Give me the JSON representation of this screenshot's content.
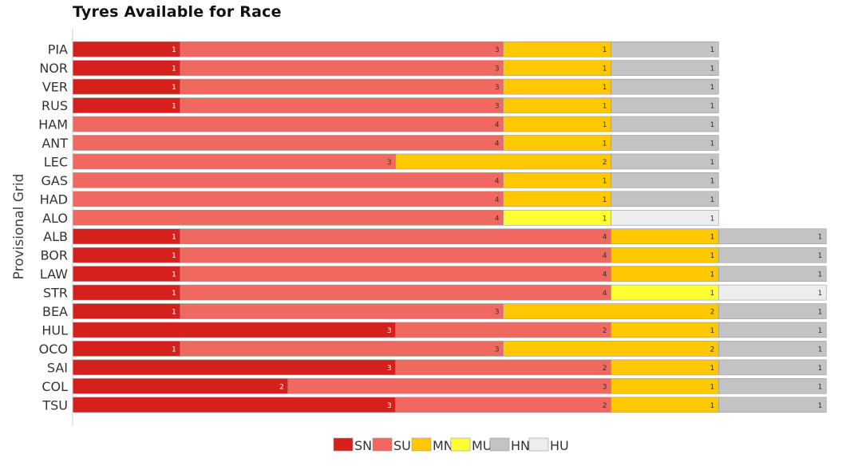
{
  "chart_data": {
    "type": "bar",
    "orientation": "horizontal",
    "stacked": true,
    "title": "Tyres Available for Race",
    "ylabel": "Provisional Grid",
    "xlabel": "",
    "categories": [
      "PIA",
      "NOR",
      "VER",
      "RUS",
      "HAM",
      "ANT",
      "LEC",
      "GAS",
      "HAD",
      "ALO",
      "ALB",
      "BOR",
      "LAW",
      "STR",
      "BEA",
      "HUL",
      "OCO",
      "SAI",
      "COL",
      "TSU"
    ],
    "series": [
      {
        "name": "SN",
        "color": "#d6201b",
        "values": [
          1,
          1,
          1,
          1,
          0,
          0,
          0,
          0,
          0,
          0,
          1,
          1,
          1,
          1,
          1,
          3,
          1,
          3,
          2,
          3
        ]
      },
      {
        "name": "SU",
        "color": "#f06860",
        "values": [
          3,
          3,
          3,
          3,
          4,
          4,
          3,
          4,
          4,
          4,
          4,
          4,
          4,
          4,
          3,
          2,
          3,
          2,
          3,
          2
        ]
      },
      {
        "name": "MN",
        "color": "#ffc800",
        "values": [
          1,
          1,
          1,
          1,
          1,
          1,
          2,
          1,
          1,
          0,
          1,
          1,
          1,
          0,
          2,
          1,
          2,
          1,
          1,
          1
        ]
      },
      {
        "name": "MU",
        "color": "#ffff33",
        "values": [
          0,
          0,
          0,
          0,
          0,
          0,
          0,
          0,
          0,
          1,
          0,
          0,
          0,
          1,
          0,
          0,
          0,
          0,
          0,
          0
        ]
      },
      {
        "name": "HN",
        "color": "#c3c3c3",
        "values": [
          1,
          1,
          1,
          1,
          1,
          1,
          1,
          1,
          1,
          0,
          1,
          1,
          1,
          0,
          1,
          1,
          1,
          1,
          1,
          1
        ]
      },
      {
        "name": "HU",
        "color": "#ededed",
        "values": [
          0,
          0,
          0,
          0,
          0,
          0,
          0,
          0,
          0,
          1,
          0,
          0,
          0,
          1,
          0,
          0,
          0,
          0,
          0,
          0
        ]
      }
    ],
    "xlim": [
      0,
      7
    ],
    "grid": false,
    "legend": "bottom-center"
  }
}
